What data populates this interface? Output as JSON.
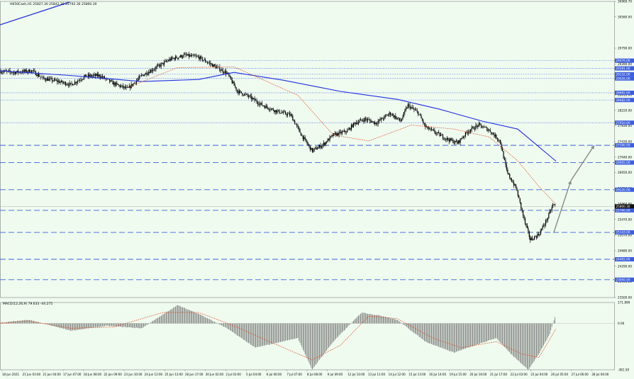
{
  "chart_data": [
    {
      "type": "candlestick",
      "symbol_header": "HK50Cash,H1  25827.30 25842.30 25792.30 25800.30",
      "colors": {
        "background": "#f0fbf0",
        "candle": "#000000",
        "ma_slow": "#1f2fe0",
        "ma_fast": "#e0502a",
        "level_line": "#3b5fe0",
        "arrow": "#888888",
        "price_label_bg": "#101010"
      },
      "y_axis_labels": [
        "30969.70",
        "30580.00",
        "29790.00",
        "29390.00",
        "29000.00",
        "28610.00",
        "28220.00",
        "27830.00",
        "27430.00",
        "27040.00",
        "26650.00",
        "26250.00",
        "25860.00",
        "25470.00",
        "25070.00",
        "24680.00",
        "24290.00",
        "23900.00",
        "23500.00"
      ],
      "level_labels": [
        "29476.00",
        "29281.00",
        "29132.00",
        "29026.00",
        "28665.00",
        "28482.00",
        "27910.00",
        "27340.00",
        "26905.00",
        "26220.00",
        "25700.00",
        "25143.00",
        "24465.00",
        "23950.00"
      ],
      "current_price": "25800.30",
      "x_axis_labels": [
        "18 Jun 2021",
        "21 Jun 03:00",
        "21 Jun 04:00",
        "17 Jun 07:00",
        "18 Jun 08:00",
        "22 Jun 09:00",
        "23 Jun 10:00",
        "24 Jun 12:00",
        "25 Jun 13:00",
        "28 Jun 17:00",
        "30 Jun 02:00",
        "2 Jul 03:00",
        "5 Jul 04:00",
        "6 Jul 06:00",
        "7 Jul 07:00",
        "8 Jul 08:00",
        "9 Jul 09:00",
        "12 Jul 10:00",
        "13 Jul 11:00",
        "14 Jul 12:00",
        "15 Jul 13:00",
        "16 Jul 14:00",
        "19 Jul 15:00",
        "20 Jul 16:00",
        "21 Jul 17:00",
        "22 Jul 03:00",
        "23 Jul 04:00",
        "26 Jul 05:00",
        "27 Jul 06:00",
        "28 Jul 06:00"
      ],
      "close_path": [
        [
          0,
          29210
        ],
        [
          20,
          29180
        ],
        [
          45,
          29220
        ],
        [
          60,
          29030
        ],
        [
          80,
          28960
        ],
        [
          100,
          28870
        ],
        [
          120,
          29080
        ],
        [
          140,
          29100
        ],
        [
          160,
          28900
        ],
        [
          180,
          28760
        ],
        [
          200,
          29100
        ],
        [
          220,
          29300
        ],
        [
          240,
          29510
        ],
        [
          260,
          29610
        ],
        [
          280,
          29560
        ],
        [
          300,
          29360
        ],
        [
          320,
          29160
        ],
        [
          335,
          28700
        ],
        [
          350,
          28580
        ],
        [
          370,
          28350
        ],
        [
          390,
          28200
        ],
        [
          410,
          28100
        ],
        [
          425,
          27600
        ],
        [
          440,
          27200
        ],
        [
          455,
          27350
        ],
        [
          470,
          27600
        ],
        [
          490,
          27700
        ],
        [
          500,
          27900
        ],
        [
          515,
          28000
        ],
        [
          530,
          27900
        ],
        [
          550,
          28150
        ],
        [
          565,
          27950
        ],
        [
          575,
          28350
        ],
        [
          590,
          28150
        ],
        [
          600,
          27800
        ],
        [
          615,
          27650
        ],
        [
          630,
          27500
        ],
        [
          645,
          27400
        ],
        [
          660,
          27700
        ],
        [
          675,
          27850
        ],
        [
          690,
          27720
        ],
        [
          705,
          27450
        ],
        [
          715,
          26650
        ],
        [
          728,
          26250
        ],
        [
          740,
          25400
        ],
        [
          748,
          24950
        ],
        [
          760,
          25100
        ],
        [
          772,
          25500
        ],
        [
          780,
          25850
        ],
        [
          784,
          25800
        ]
      ],
      "ma_slow_path": [
        [
          0,
          29220
        ],
        [
          100,
          29100
        ],
        [
          200,
          28950
        ],
        [
          280,
          29000
        ],
        [
          330,
          29180
        ],
        [
          400,
          28980
        ],
        [
          480,
          28700
        ],
        [
          560,
          28500
        ],
        [
          620,
          28250
        ],
        [
          680,
          27950
        ],
        [
          730,
          27750
        ],
        [
          760,
          27300
        ],
        [
          784,
          26940
        ]
      ],
      "ma_fast_path": [
        [
          180,
          28800
        ],
        [
          250,
          29300
        ],
        [
          330,
          29320
        ],
        [
          420,
          28600
        ],
        [
          470,
          27600
        ],
        [
          520,
          27450
        ],
        [
          580,
          27850
        ],
        [
          640,
          27750
        ],
        [
          690,
          27550
        ],
        [
          730,
          26950
        ],
        [
          760,
          26300
        ],
        [
          784,
          25850
        ]
      ],
      "arrows": [
        [
          [
            781,
            25150
          ],
          [
            805,
            26450
          ]
        ],
        [
          [
            805,
            26450
          ],
          [
            838,
            27340
          ]
        ]
      ],
      "macd": {
        "label": "MACD(12,26,9) 79.633 -44.275",
        "y_axis_labels": [
          "171.899",
          "0.00",
          "-381.50"
        ],
        "histogram_path": [
          [
            0,
            5
          ],
          [
            40,
            30
          ],
          [
            100,
            -60
          ],
          [
            150,
            -20
          ],
          [
            200,
            -40
          ],
          [
            250,
            150
          ],
          [
            280,
            80
          ],
          [
            320,
            -40
          ],
          [
            360,
            -200
          ],
          [
            420,
            -120
          ],
          [
            440,
            -380
          ],
          [
            470,
            -150
          ],
          [
            510,
            90
          ],
          [
            540,
            60
          ],
          [
            560,
            30
          ],
          [
            600,
            -150
          ],
          [
            640,
            -240
          ],
          [
            700,
            -120
          ],
          [
            720,
            -250
          ],
          [
            745,
            -381
          ],
          [
            760,
            -250
          ],
          [
            775,
            -90
          ],
          [
            784,
            79
          ]
        ],
        "signal_path": [
          [
            0,
            0
          ],
          [
            40,
            20
          ],
          [
            100,
            -40
          ],
          [
            160,
            -30
          ],
          [
            230,
            90
          ],
          [
            280,
            90
          ],
          [
            330,
            -20
          ],
          [
            380,
            -150
          ],
          [
            440,
            -300
          ],
          [
            480,
            -180
          ],
          [
            520,
            60
          ],
          [
            560,
            40
          ],
          [
            610,
            -120
          ],
          [
            650,
            -200
          ],
          [
            700,
            -150
          ],
          [
            735,
            -250
          ],
          [
            760,
            -280
          ],
          [
            784,
            -44
          ]
        ]
      }
    }
  ]
}
